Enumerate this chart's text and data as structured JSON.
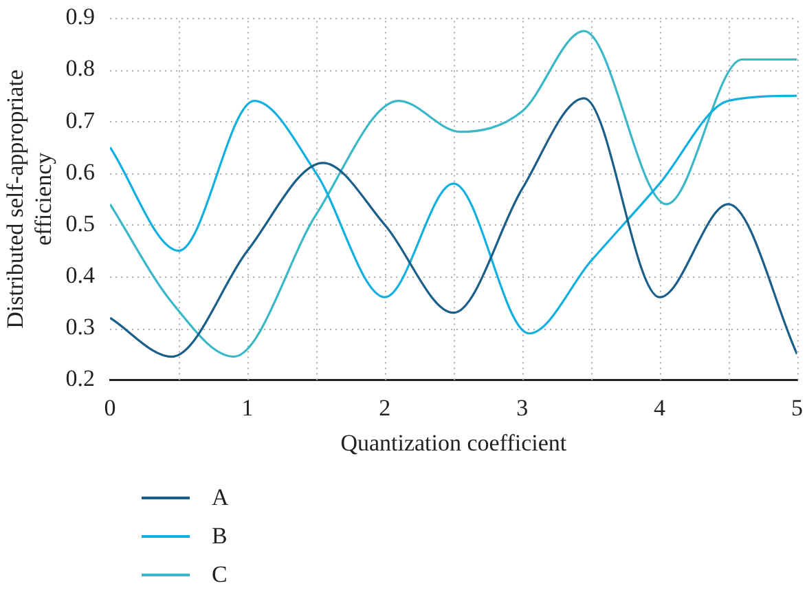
{
  "chart_data": {
    "type": "line",
    "xlabel": "Quantization coefficient",
    "ylabel": "Distributed self-appropriate efficiency",
    "xlim": [
      0,
      5
    ],
    "xticks": [
      0,
      1,
      2,
      3,
      4,
      5
    ],
    "ylim": [
      0.2,
      0.9
    ],
    "yticks": [
      0.2,
      0.3,
      0.4,
      0.5,
      0.6,
      0.7,
      0.8,
      0.9
    ],
    "grid": true,
    "legend": "bottom left",
    "marker": "none",
    "line_style": "solid",
    "series": [
      {
        "name": "A",
        "color": "#1a5e8a",
        "x": [
          0,
          0.45,
          1,
          1.55,
          2,
          2.5,
          3,
          3.45,
          4,
          4.5,
          5
        ],
        "values": [
          0.32,
          0.245,
          0.45,
          0.62,
          0.5,
          0.33,
          0.57,
          0.745,
          0.36,
          0.54,
          0.25
        ]
      },
      {
        "name": "B",
        "color": "#12b0e0",
        "x": [
          0,
          0.5,
          1.05,
          1.5,
          2,
          2.5,
          3.05,
          3.5,
          4,
          4.5,
          5
        ],
        "values": [
          0.65,
          0.45,
          0.74,
          0.6,
          0.36,
          0.58,
          0.29,
          0.43,
          0.58,
          0.74,
          0.75
        ]
      },
      {
        "name": "C",
        "color": "#3ab8c8",
        "x": [
          0,
          0.45,
          0.9,
          1.5,
          2.1,
          2.55,
          3,
          3.45,
          4.05,
          4.6,
          5
        ],
        "values": [
          0.54,
          0.35,
          0.245,
          0.52,
          0.74,
          0.68,
          0.72,
          0.875,
          0.54,
          0.82,
          0.82
        ]
      }
    ]
  }
}
